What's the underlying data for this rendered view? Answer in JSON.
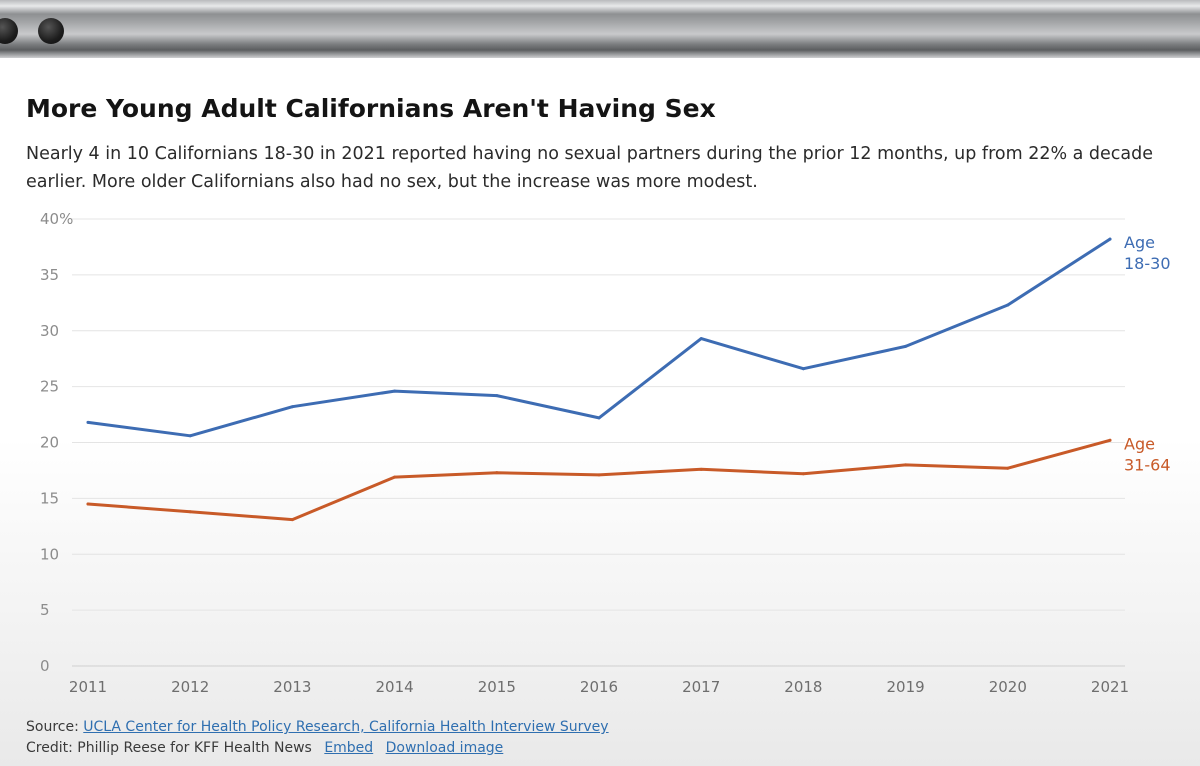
{
  "header": {
    "title": "More Young Adult Californians Aren't Having Sex",
    "subtitle": "Nearly 4 in 10 Californians 18-30 in 2021 reported having no sexual partners during the prior 12 months, up from 22% a decade earlier. More older Californians also had no sex, but the increase was more modest."
  },
  "chart_data": {
    "type": "line",
    "x": [
      2011,
      2012,
      2013,
      2014,
      2015,
      2016,
      2017,
      2018,
      2019,
      2020,
      2021
    ],
    "series": [
      {
        "name": "Age 18-30",
        "label_lines": [
          "Age",
          "18-30"
        ],
        "color": "#3d6cb3",
        "values": [
          21.8,
          20.6,
          23.2,
          24.6,
          24.2,
          22.2,
          29.3,
          26.6,
          28.6,
          32.3,
          38.2
        ]
      },
      {
        "name": "Age 31-64",
        "label_lines": [
          "Age",
          "31-64"
        ],
        "color": "#c85a28",
        "values": [
          14.5,
          13.8,
          13.1,
          16.9,
          17.3,
          17.1,
          17.6,
          17.2,
          18.0,
          17.7,
          20.2
        ]
      }
    ],
    "y_ticks": [
      0,
      5,
      10,
      15,
      20,
      25,
      30,
      35,
      40
    ],
    "y_tick_labels": [
      "0",
      "5",
      "10",
      "15",
      "20",
      "25",
      "30",
      "35",
      "40%"
    ],
    "ylim": [
      0,
      40
    ],
    "xlabel": "",
    "ylabel": "",
    "grid": true,
    "legend": "inline labels at line ends (right)"
  },
  "footer": {
    "source_label": "Source:",
    "source_link": "UCLA Center for Health Policy Research, California Health Interview Survey",
    "credit_label": "Credit: Phillip Reese for KFF Health News",
    "embed_link": "Embed",
    "download_link": "Download image"
  }
}
